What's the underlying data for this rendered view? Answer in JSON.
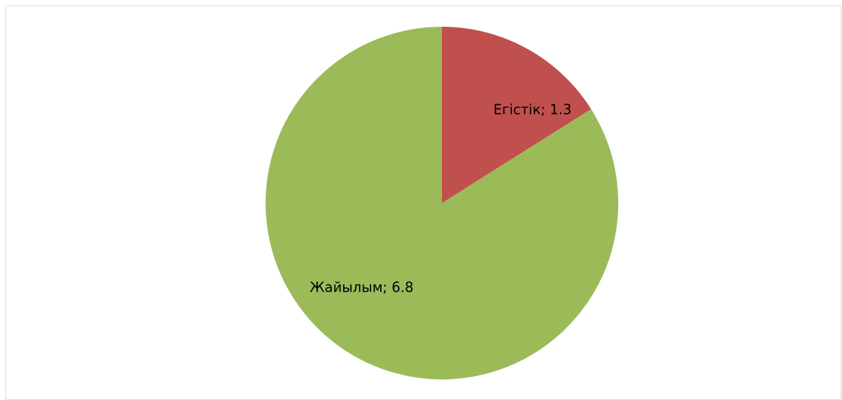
{
  "chart_data": {
    "type": "pie",
    "title": "",
    "slices": [
      {
        "label": "Егістік",
        "value": 1.3,
        "color": "#c0504d",
        "data_label": "Егістік; 1.3"
      },
      {
        "label": "Жайылым",
        "value": 6.8,
        "color": "#9bbb59",
        "data_label": "Жайылым; 6.8"
      }
    ],
    "legend": "none",
    "start_angle": "12 o'clock",
    "direction": "clockwise"
  }
}
